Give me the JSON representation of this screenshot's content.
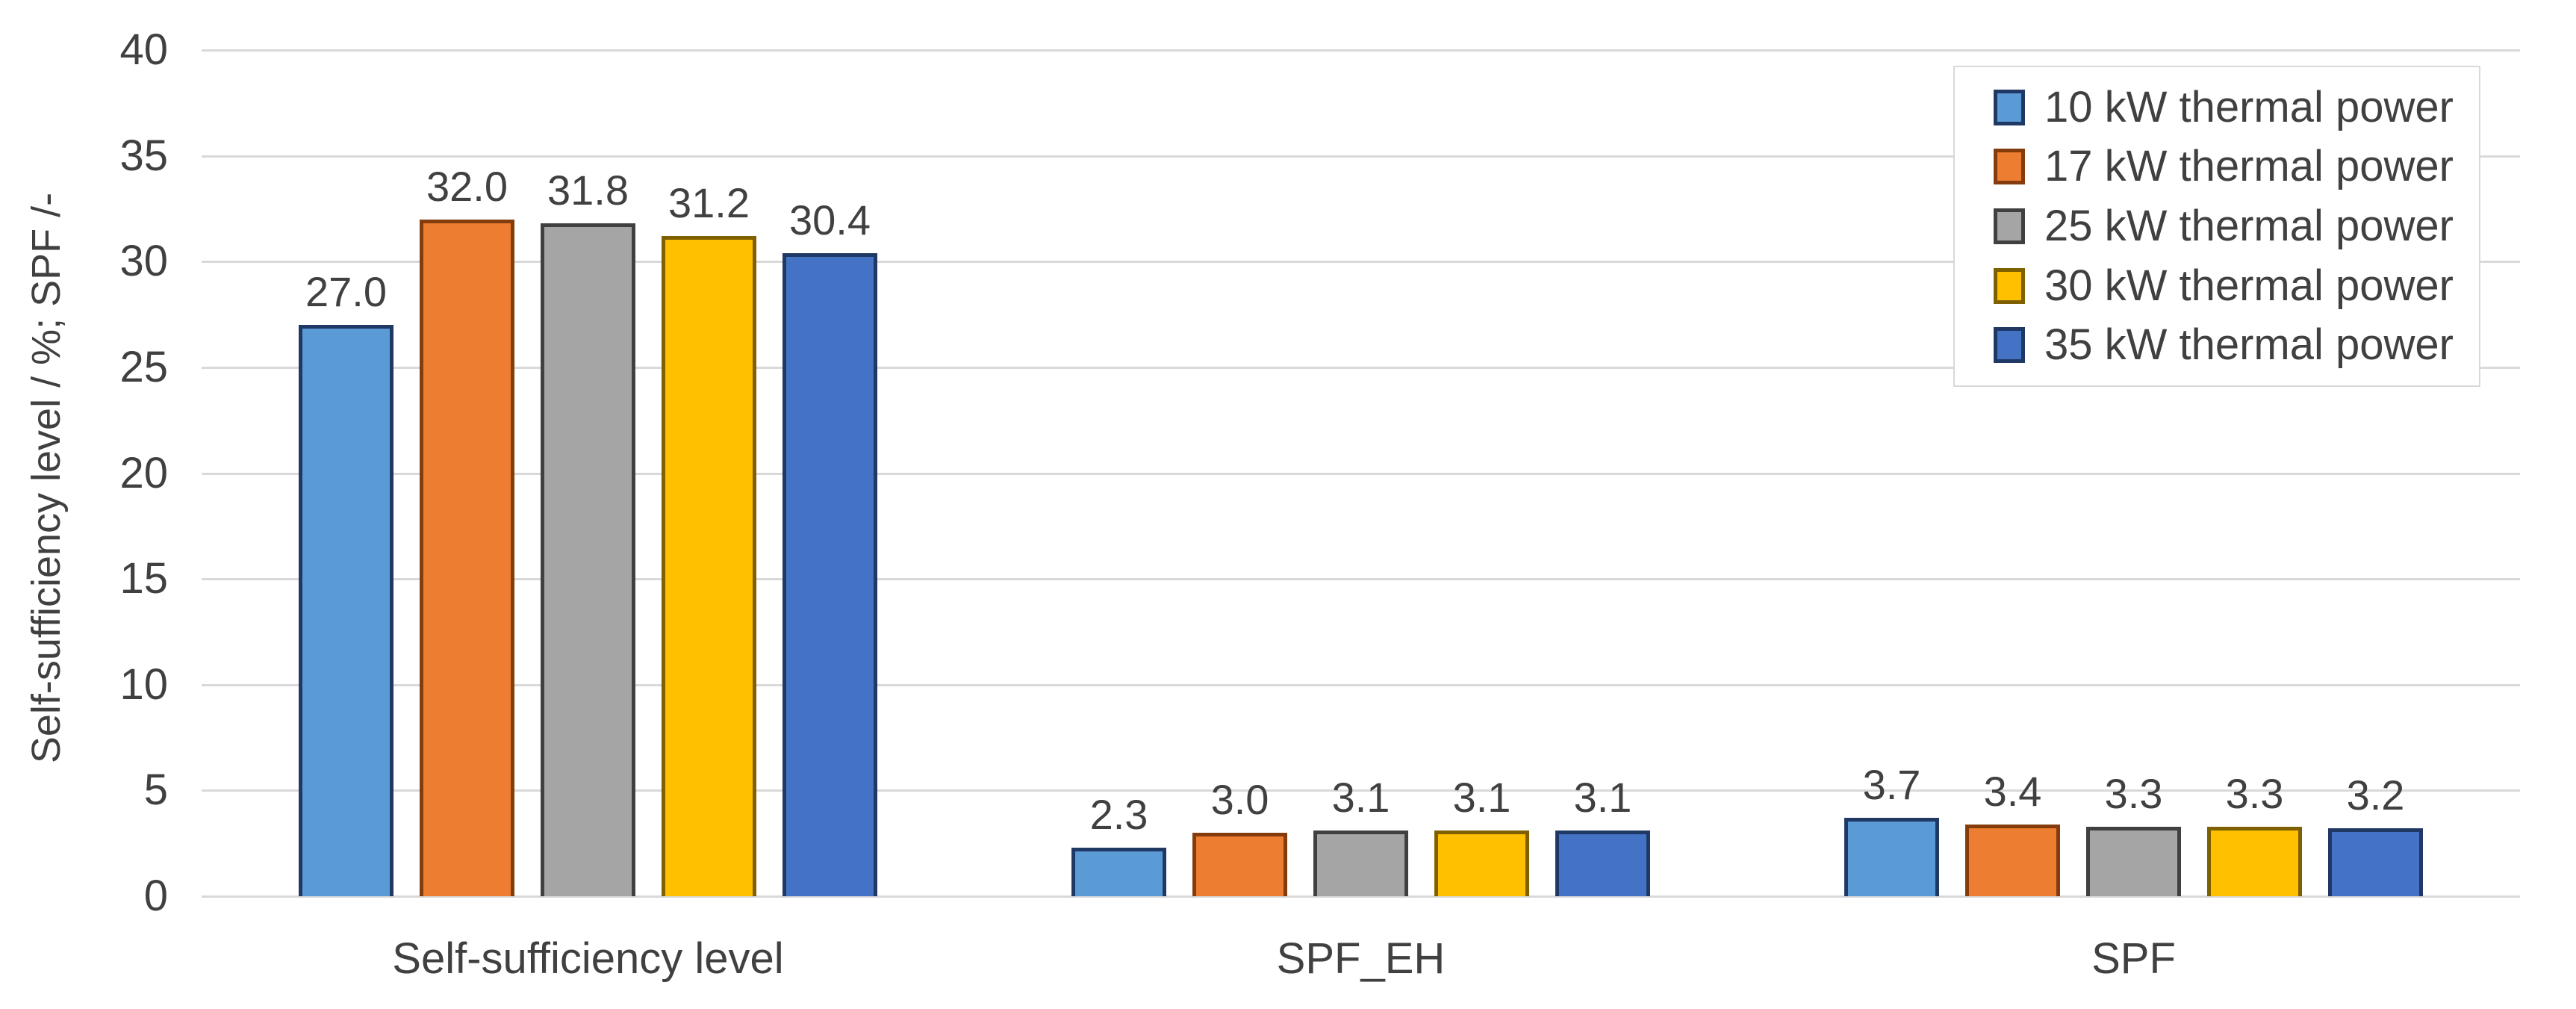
{
  "chart_data": {
    "type": "bar",
    "title": "",
    "categories": [
      "Self-sufficiency level",
      "SPF_EH",
      "SPF"
    ],
    "series": [
      {
        "name": "10 kW thermal power",
        "values": [
          27.0,
          2.3,
          3.7
        ],
        "fill": "#5B9BD5",
        "border": "#1F3864"
      },
      {
        "name": "17 kW thermal power",
        "values": [
          32.0,
          3.0,
          3.4
        ],
        "fill": "#ED7D31",
        "border": "#843C0C"
      },
      {
        "name": "25 kW thermal power",
        "values": [
          31.8,
          3.1,
          3.3
        ],
        "fill": "#A5A5A5",
        "border": "#404040"
      },
      {
        "name": "30 kW thermal power",
        "values": [
          31.2,
          3.1,
          3.3
        ],
        "fill": "#FFC000",
        "border": "#7F6000"
      },
      {
        "name": "35 kW thermal power",
        "values": [
          30.4,
          3.1,
          3.2
        ],
        "fill": "#4472C4",
        "border": "#1F3864"
      }
    ],
    "data_label_decimals": 1,
    "data_labels": [
      [
        "27.0",
        "32.0",
        "31.8",
        "31.2",
        "30.4"
      ],
      [
        "2.3",
        "3.0",
        "3.1",
        "3.1",
        "3.1"
      ],
      [
        "3.7",
        "3.4",
        "3.3",
        "3.3",
        "3.2"
      ]
    ],
    "xlabel": "",
    "ylabel": "Self-sufficiency level / %; SPF /-",
    "ylim": [
      0,
      40
    ],
    "ytick_step": 5,
    "yticks": [
      "0",
      "5",
      "10",
      "15",
      "20",
      "25",
      "30",
      "35",
      "40"
    ],
    "grid": "horizontal-major",
    "legend_position": "top-right",
    "colors": {
      "text": "#404040",
      "gridline": "#D9D9D9",
      "legend_border": "#D9D9D9",
      "background": "#FFFFFF"
    }
  }
}
